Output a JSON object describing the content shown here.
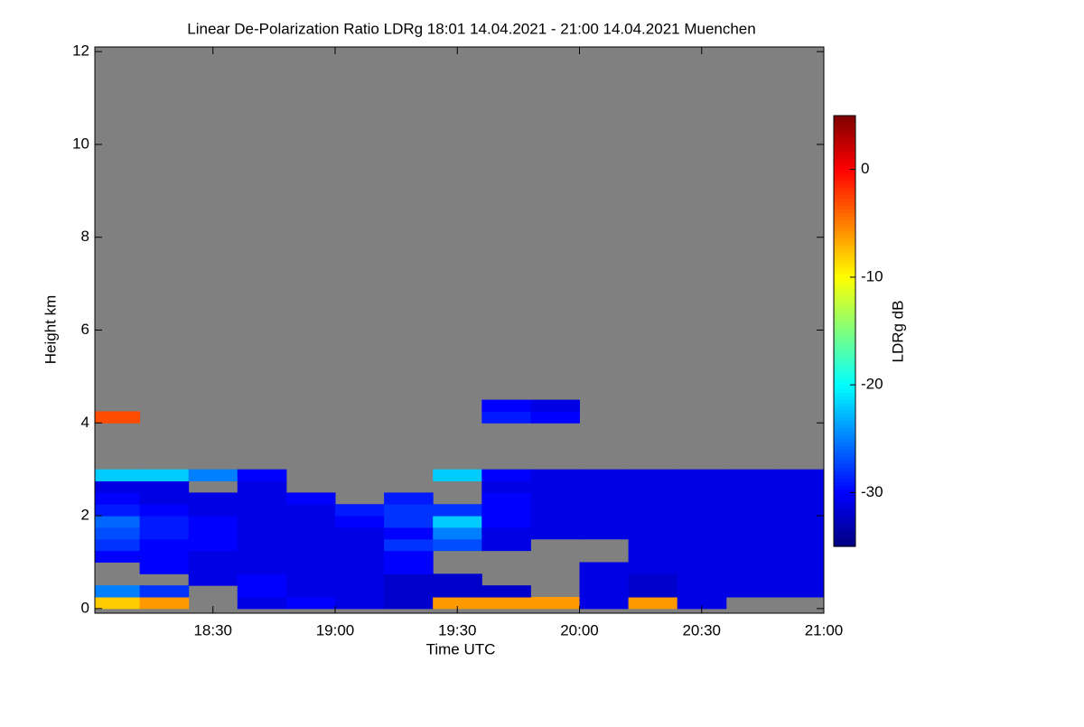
{
  "chart_data": {
    "type": "heatmap",
    "title": "Linear De-Polarization Ratio LDRg   18:01 14.04.2021 - 21:00 14.04.2021 Muenchen",
    "x_label": "Time UTC",
    "y_label": "Height km",
    "colorbar_label": "LDRg dB",
    "xlim": [
      18.0167,
      21.0
    ],
    "ylim": [
      -0.1,
      12.1
    ],
    "xticks": [
      {
        "value": 18.5,
        "label": "18:30"
      },
      {
        "value": 19.0,
        "label": "19:00"
      },
      {
        "value": 19.5,
        "label": "19:30"
      },
      {
        "value": 20.0,
        "label": "20:00"
      },
      {
        "value": 20.5,
        "label": "20:30"
      },
      {
        "value": 21.0,
        "label": "21:00"
      }
    ],
    "yticks": [
      0,
      2,
      4,
      6,
      8,
      10,
      12
    ],
    "clim": [
      -35,
      5
    ],
    "cticks": [
      -30,
      -20,
      -10,
      0
    ],
    "colormap": [
      "#00007f",
      "#0000ff",
      "#007fff",
      "#00ffff",
      "#7fff7f",
      "#ffff00",
      "#ff7f00",
      "#ff0000",
      "#7f0000"
    ],
    "missing_color": "#808080",
    "x_edges": [
      18.0,
      18.2,
      18.4,
      18.6,
      18.8,
      19.0,
      19.2,
      19.4,
      19.6,
      19.8,
      20.0,
      20.2,
      20.4,
      20.6,
      20.8,
      21.0
    ],
    "y_edges": [
      0,
      0.25,
      0.5,
      0.75,
      1.0,
      1.25,
      1.5,
      1.75,
      2.0,
      2.25,
      2.5,
      2.75,
      3.0,
      3.25,
      3.5,
      3.75,
      4.0,
      4.25,
      4.5
    ],
    "z": [
      [
        -8,
        -6,
        null,
        -31,
        -30,
        -31,
        -32,
        -6,
        -6,
        -6,
        -31,
        -6,
        -31,
        null,
        null
      ],
      [
        -25,
        -28,
        null,
        -30,
        -31,
        -31,
        -32,
        -32,
        -32,
        null,
        -31,
        -32,
        -31,
        -31,
        -31
      ],
      [
        null,
        null,
        -31,
        -30,
        -31,
        -31,
        -32,
        -32,
        null,
        null,
        -31,
        -32,
        -31,
        -31,
        -31
      ],
      [
        null,
        -30,
        -31,
        -31,
        -31,
        -31,
        -30,
        null,
        null,
        null,
        -31,
        -31,
        -31,
        -31,
        -31
      ],
      [
        -30,
        -30,
        -31,
        -31,
        -31,
        -31,
        -30,
        null,
        null,
        null,
        null,
        -31,
        -31,
        -31,
        -31
      ],
      [
        -28,
        -30,
        -30,
        -31,
        -31,
        -31,
        -28,
        -27,
        -31,
        null,
        null,
        -31,
        -31,
        -31,
        -31
      ],
      [
        -27,
        -29,
        -30,
        -31,
        -31,
        -31,
        -30,
        -25,
        -31,
        -31,
        -31,
        -31,
        -31,
        -31,
        -31
      ],
      [
        -26,
        -29,
        -30,
        -31,
        -31,
        -30,
        -28,
        -22,
        -30,
        -31,
        -31,
        -31,
        -31,
        -31,
        -31
      ],
      [
        -29,
        -30,
        -31,
        -31,
        -31,
        -29,
        -28,
        -28,
        -30,
        -31,
        -31,
        -31,
        -31,
        -31,
        -31
      ],
      [
        -30,
        -31,
        -31,
        -31,
        -30,
        null,
        -29,
        null,
        -30,
        -31,
        -31,
        -31,
        -31,
        -31,
        -31
      ],
      [
        -31,
        -31,
        null,
        -31,
        null,
        null,
        null,
        null,
        -31,
        -31,
        -31,
        -31,
        -31,
        -31,
        -31
      ],
      [
        -22,
        -22,
        -25,
        -30,
        null,
        null,
        null,
        -22,
        -30,
        -31,
        -31,
        -31,
        -31,
        -31,
        -31
      ],
      [
        null,
        null,
        null,
        null,
        null,
        null,
        null,
        null,
        null,
        null,
        null,
        null,
        null,
        null,
        null
      ],
      [
        null,
        null,
        null,
        null,
        null,
        null,
        null,
        null,
        null,
        null,
        null,
        null,
        null,
        null,
        null
      ],
      [
        null,
        null,
        null,
        null,
        null,
        null,
        null,
        null,
        null,
        null,
        null,
        null,
        null,
        null,
        null
      ],
      [
        null,
        null,
        null,
        null,
        null,
        null,
        null,
        null,
        null,
        null,
        null,
        null,
        null,
        null,
        null
      ],
      [
        -3,
        null,
        null,
        null,
        null,
        null,
        null,
        null,
        -29,
        -30,
        null,
        null,
        null,
        null,
        null
      ],
      [
        null,
        null,
        null,
        null,
        null,
        null,
        null,
        null,
        -30,
        -31,
        null,
        null,
        null,
        null,
        null
      ]
    ]
  }
}
